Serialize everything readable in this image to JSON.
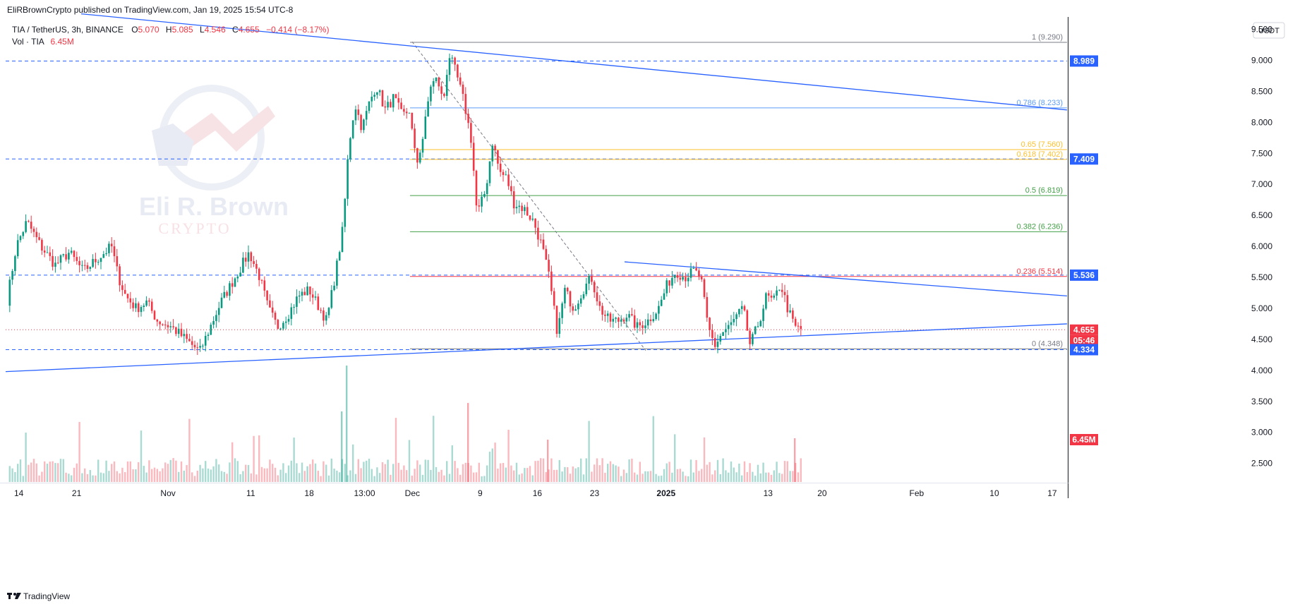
{
  "header": {
    "published": "EliRBrownCrypto published on TradingView.com, Jan 19, 2025 15:54 UTC-8",
    "symbol": "TIA / TetherUS, 3h, BINANCE",
    "o_label": "O",
    "o": "5.070",
    "h_label": "H",
    "h": "5.085",
    "l_label": "L",
    "l": "4.546",
    "c_label": "C",
    "c": "4.655",
    "change": "−0.414 (−8.17%)",
    "vol_label": "Vol · TIA",
    "vol_value": "6.45M"
  },
  "axis": {
    "currency": "USDT",
    "ticks": [
      "9.500",
      "9.000",
      "8.500",
      "8.000",
      "7.500",
      "7.000",
      "6.500",
      "6.000",
      "5.500",
      "5.000",
      "4.500",
      "4.000",
      "3.500",
      "3.000",
      "2.500"
    ],
    "time_ticks": [
      "14",
      "21",
      "Nov",
      "11",
      "18",
      "13:00",
      "Dec",
      "9",
      "16",
      "23",
      "2025",
      "13",
      "20",
      "Feb",
      "10",
      "17"
    ]
  },
  "badges": [
    {
      "label": "8.989",
      "color": "#2962ff"
    },
    {
      "label": "7.409",
      "color": "#2962ff"
    },
    {
      "label": "5.536",
      "color": "#2962ff"
    },
    {
      "label": "4.655",
      "color": "#f23645"
    },
    {
      "label": "05:46",
      "color": "#f23645"
    },
    {
      "label": "4.334",
      "color": "#2962ff"
    },
    {
      "label": "6.45M",
      "color": "#f23645"
    }
  ],
  "fib_levels": [
    {
      "label": "1 (9.290)",
      "value": 9.29,
      "color": "#787b86"
    },
    {
      "label": "0.786 (8.233)",
      "value": 8.233,
      "color": "#5b9cf6"
    },
    {
      "label": "0.65 (7.560)",
      "value": 7.56,
      "color": "#fbc02d"
    },
    {
      "label": "0.618 (7.402)",
      "value": 7.402,
      "color": "#fbc02d"
    },
    {
      "label": "0.5 (6.819)",
      "value": 6.819,
      "color": "#43a047"
    },
    {
      "label": "0.382 (6.236)",
      "value": 6.236,
      "color": "#43a047"
    },
    {
      "label": "0.236 (5.514)",
      "value": 5.514,
      "color": "#f23645"
    },
    {
      "label": "0 (4.348)",
      "value": 4.348,
      "color": "#787b86"
    }
  ],
  "watermark": {
    "line1": "Eli R. Brown",
    "line2": "CRYPTO"
  },
  "footer": {
    "brand": "TradingView"
  },
  "colors": {
    "up": "#089981",
    "down": "#f23645",
    "trend": "#2962ff"
  },
  "chart_data": {
    "type": "candlestick",
    "symbol": "TIA / TetherUS",
    "interval": "3h",
    "exchange": "BINANCE",
    "ylim": [
      2.2,
      9.7
    ],
    "price_scale": "linear",
    "grid": false,
    "close_path": [
      [
        0,
        5.0
      ],
      [
        15,
        6.0
      ],
      [
        30,
        6.4
      ],
      [
        50,
        6.0
      ],
      [
        70,
        5.7
      ],
      [
        90,
        5.9
      ],
      [
        110,
        5.6
      ],
      [
        130,
        5.8
      ],
      [
        150,
        6.0
      ],
      [
        160,
        5.5
      ],
      [
        170,
        5.2
      ],
      [
        185,
        5.0
      ],
      [
        200,
        5.1
      ],
      [
        215,
        4.8
      ],
      [
        235,
        4.7
      ],
      [
        255,
        4.5
      ],
      [
        275,
        4.3
      ],
      [
        290,
        4.7
      ],
      [
        305,
        5.1
      ],
      [
        320,
        5.4
      ],
      [
        335,
        5.7
      ],
      [
        345,
        5.9
      ],
      [
        360,
        5.5
      ],
      [
        372,
        5.0
      ],
      [
        385,
        4.7
      ],
      [
        400,
        4.9
      ],
      [
        415,
        5.2
      ],
      [
        430,
        5.3
      ],
      [
        445,
        5.0
      ],
      [
        455,
        4.8
      ],
      [
        468,
        5.6
      ],
      [
        478,
        6.3
      ],
      [
        486,
        7.6
      ],
      [
        495,
        8.3
      ],
      [
        505,
        7.9
      ],
      [
        515,
        8.3
      ],
      [
        525,
        8.6
      ],
      [
        538,
        8.2
      ],
      [
        550,
        8.4
      ],
      [
        562,
        8.1
      ],
      [
        572,
        8.2
      ],
      [
        582,
        7.3
      ],
      [
        592,
        7.8
      ],
      [
        602,
        8.6
      ],
      [
        612,
        8.7
      ],
      [
        620,
        8.3
      ],
      [
        628,
        9.1
      ],
      [
        638,
        8.8
      ],
      [
        650,
        8.3
      ],
      [
        660,
        7.7
      ],
      [
        668,
        6.5
      ],
      [
        680,
        6.9
      ],
      [
        690,
        7.7
      ],
      [
        700,
        7.2
      ],
      [
        710,
        7.1
      ],
      [
        720,
        6.7
      ],
      [
        735,
        6.6
      ],
      [
        748,
        6.4
      ],
      [
        760,
        6.0
      ],
      [
        770,
        5.5
      ],
      [
        782,
        4.6
      ],
      [
        792,
        5.3
      ],
      [
        805,
        5.0
      ],
      [
        818,
        5.3
      ],
      [
        830,
        5.5
      ],
      [
        842,
        5.0
      ],
      [
        855,
        4.8
      ],
      [
        868,
        4.8
      ],
      [
        880,
        4.9
      ],
      [
        895,
        4.7
      ],
      [
        910,
        4.8
      ],
      [
        925,
        5.0
      ],
      [
        938,
        5.4
      ],
      [
        950,
        5.6
      ],
      [
        962,
        5.5
      ],
      [
        975,
        5.6
      ],
      [
        985,
        5.5
      ],
      [
        995,
        4.7
      ],
      [
        1005,
        4.4
      ],
      [
        1015,
        4.6
      ],
      [
        1025,
        4.7
      ],
      [
        1038,
        4.9
      ],
      [
        1045,
        5.0
      ],
      [
        1055,
        4.4
      ],
      [
        1068,
        4.8
      ],
      [
        1078,
        5.2
      ],
      [
        1088,
        5.1
      ],
      [
        1098,
        5.4
      ],
      [
        1108,
        5.0
      ],
      [
        1118,
        4.7
      ],
      [
        1127,
        4.66
      ]
    ],
    "trendlines": [
      {
        "name": "upper",
        "from": [
          115,
          9.75
        ],
        "to": [
          1512,
          8.2
        ]
      },
      {
        "name": "lower",
        "from": [
          8,
          3.98
        ],
        "to": [
          1512,
          4.75
        ]
      },
      {
        "name": "triangle",
        "from": [
          885,
          5.75
        ],
        "to": [
          1512,
          5.2
        ]
      }
    ],
    "horizontal_levels": [
      8.989,
      7.409,
      5.536,
      4.334
    ],
    "last_price": 4.655,
    "volume_last": "6.45M"
  }
}
